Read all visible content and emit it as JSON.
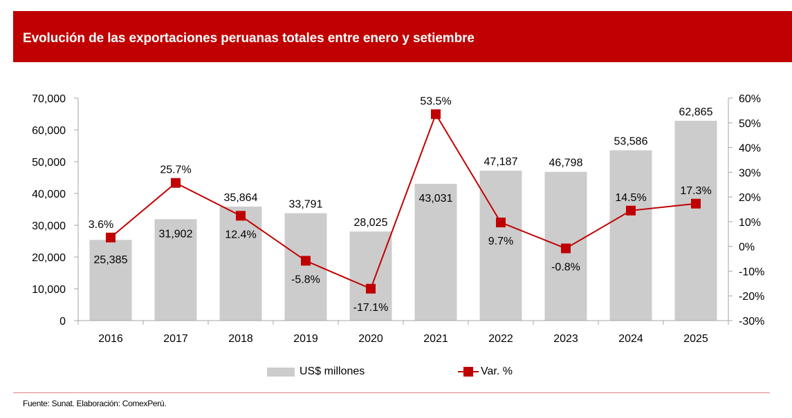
{
  "header": {
    "title": "Evolución de las exportaciones peruanas totales entre enero y setiembre"
  },
  "chart_data": {
    "type": "bar",
    "title": "Evolución de las exportaciones peruanas totales entre enero y setiembre",
    "categories": [
      "2016",
      "2017",
      "2018",
      "2019",
      "2020",
      "2021",
      "2022",
      "2023",
      "2024",
      "2025"
    ],
    "series": [
      {
        "name": "US$ millones",
        "type": "bar",
        "axis": "left",
        "color": "#cccccc",
        "values": [
          25385,
          31902,
          35864,
          33791,
          28025,
          43031,
          47187,
          46798,
          53586,
          62865
        ],
        "labels": [
          "25,385",
          "31,902",
          "35,864",
          "33,791",
          "28,025",
          "43,031",
          "47,187",
          "46,798",
          "53,586",
          "62,865"
        ]
      },
      {
        "name": "Var. %",
        "type": "line",
        "axis": "right",
        "color": "#c00000",
        "marker": "square",
        "values": [
          3.6,
          25.7,
          12.4,
          -5.8,
          -17.1,
          53.5,
          9.7,
          -0.8,
          14.5,
          17.3
        ],
        "labels": [
          "3.6%",
          "25.7%",
          "12.4%",
          "-5.8%",
          "-17.1%",
          "53.5%",
          "9.7%",
          "-0.8%",
          "14.5%",
          "17.3%"
        ]
      }
    ],
    "y_left": {
      "label": "",
      "ylim": [
        0,
        70000
      ],
      "ticks": [
        0,
        10000,
        20000,
        30000,
        40000,
        50000,
        60000,
        70000
      ],
      "tick_labels": [
        "0",
        "10,000",
        "20,000",
        "30,000",
        "40,000",
        "50,000",
        "60,000",
        "70,000"
      ]
    },
    "y_right": {
      "label": "",
      "ylim": [
        -30,
        60
      ],
      "ticks": [
        -30,
        -20,
        -10,
        0,
        10,
        20,
        30,
        40,
        50,
        60
      ],
      "tick_labels": [
        "-30%",
        "-20%",
        "-10%",
        "0%",
        "10%",
        "20%",
        "30%",
        "40%",
        "50%",
        "60%"
      ]
    },
    "xlabel": "",
    "grid": false,
    "legend": {
      "position": "bottom",
      "entries": [
        "US$ millones",
        "Var. %"
      ]
    }
  },
  "footer": {
    "source": "Fuente: Sunat. Elaboración: ComexPerú."
  }
}
